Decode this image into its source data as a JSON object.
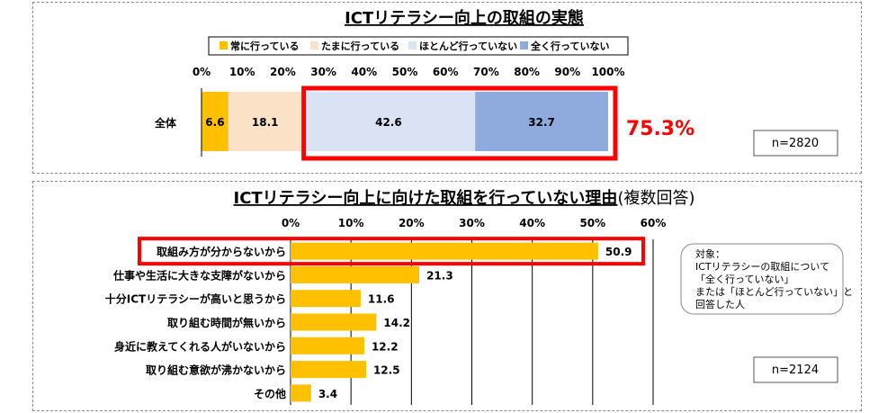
{
  "chart_data": [
    {
      "type": "bar",
      "orientation": "horizontal",
      "stacked": true,
      "title": "ICTリテラシー向上の取組の実態",
      "categories": [
        "全体"
      ],
      "series": [
        {
          "name": "常に行っている",
          "values": [
            6.6
          ],
          "color": "#ffc000"
        },
        {
          "name": "たまに行っている",
          "values": [
            18.1
          ],
          "color": "#fbe1c6"
        },
        {
          "name": "ほとんど行っていない",
          "values": [
            42.6
          ],
          "color": "#dae3f3"
        },
        {
          "name": "全く行っていない",
          "values": [
            32.7
          ],
          "color": "#8faadc"
        }
      ],
      "xlim": [
        0,
        100
      ],
      "xticks": [
        "0%",
        "10%",
        "20%",
        "30%",
        "40%",
        "50%",
        "60%",
        "70%",
        "80%",
        "90%",
        "100%"
      ],
      "legend": "top",
      "highlight_value": "75.3%",
      "highlight_color": "#ff0000",
      "n_label": "n=2820"
    },
    {
      "type": "bar",
      "orientation": "horizontal",
      "title": "ICTリテラシー向上に向けた取組を行っていない理由",
      "title_suffix": "(複数回答)",
      "categories": [
        "取組み方が分からないから",
        "仕事や生活に大きな支障がないから",
        "十分ICTリテラシーが高いと思うから",
        "取り組む時間が無いから",
        "身近に教えてくれる人がいないから",
        "取り組む意欲が沸かないから",
        "その他"
      ],
      "values": [
        50.9,
        21.3,
        11.6,
        14.2,
        12.2,
        12.5,
        3.4
      ],
      "labels": [
        "50.9",
        "21.3",
        "11.6",
        "14.2",
        "12.2",
        "12.5",
        "3.4"
      ],
      "bar_color": "#ffc000",
      "xlim": [
        0,
        60
      ],
      "xticks": [
        "0%",
        "10%",
        "20%",
        "30%",
        "40%",
        "50%",
        "60%"
      ],
      "grid": true,
      "note_lines": [
        "対象：",
        "ICTリテラシーの取組について",
        "「全く行っていない」",
        "または「ほとんど行っていない」と",
        "回答した人"
      ],
      "n_label": "n=2124"
    }
  ],
  "colors": {
    "highlight": "#ff0000",
    "axis": "#000000",
    "grid": "#000000"
  }
}
